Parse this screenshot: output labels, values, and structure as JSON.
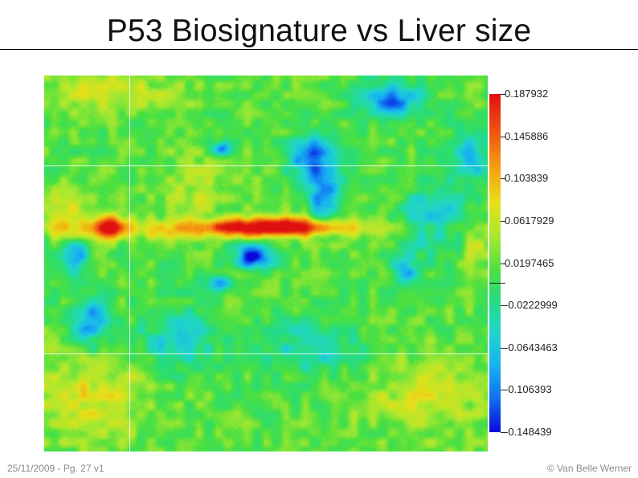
{
  "title": "P53 Biosignature vs Liver size",
  "footer": {
    "left": "25/11/2009 - Pg. 27 v1",
    "right": "© Van Belle Werner"
  },
  "chart_data": {
    "type": "heatmap",
    "title": "",
    "xlabel": "",
    "ylabel": "",
    "grid": true,
    "colorbar": {
      "position": "right",
      "min": -0.148439,
      "max": 0.187932,
      "tick_labels": [
        "0.187932",
        "0.145886",
        "0.103839",
        "0.0617929",
        "0.0197465",
        "-0.0222999",
        "-0.0643463",
        "-0.106393",
        "-0.148439"
      ],
      "colormap": "jet",
      "colors": [
        "#0808d8",
        "#1070f0",
        "#18b4f0",
        "#20d6c8",
        "#28dc78",
        "#4ce040",
        "#a8e830",
        "#e8e018",
        "#f5a012",
        "#f05a10",
        "#e01010"
      ]
    },
    "background_value": 0.02,
    "features": [
      {
        "kind": "high",
        "value": 0.18,
        "u": 0.53,
        "v": 0.4,
        "su": 0.09,
        "sv": 0.016
      },
      {
        "kind": "high",
        "value": 0.16,
        "u": 0.145,
        "v": 0.4,
        "su": 0.025,
        "sv": 0.022
      },
      {
        "kind": "band",
        "value": 0.1,
        "u": 0.4,
        "v": 0.405,
        "su": 0.3,
        "sv": 0.018
      },
      {
        "kind": "low",
        "value": -0.148,
        "u": 0.47,
        "v": 0.48,
        "su": 0.03,
        "sv": 0.022
      },
      {
        "kind": "low",
        "value": -0.12,
        "u": 0.395,
        "v": 0.55,
        "su": 0.02,
        "sv": 0.015
      },
      {
        "kind": "low",
        "value": -0.11,
        "u": 0.6,
        "v": 0.22,
        "su": 0.035,
        "sv": 0.045
      },
      {
        "kind": "low",
        "value": -0.1,
        "u": 0.63,
        "v": 0.32,
        "su": 0.025,
        "sv": 0.05
      },
      {
        "kind": "low",
        "value": -0.11,
        "u": 0.78,
        "v": 0.06,
        "su": 0.05,
        "sv": 0.035
      },
      {
        "kind": "low",
        "value": -0.09,
        "u": 0.1,
        "v": 0.65,
        "su": 0.03,
        "sv": 0.05
      },
      {
        "kind": "low",
        "value": -0.09,
        "u": 0.07,
        "v": 0.48,
        "su": 0.02,
        "sv": 0.03
      },
      {
        "kind": "low",
        "value": -0.1,
        "u": 0.4,
        "v": 0.19,
        "su": 0.015,
        "sv": 0.015
      },
      {
        "kind": "low",
        "value": -0.08,
        "u": 0.81,
        "v": 0.52,
        "su": 0.02,
        "sv": 0.03
      },
      {
        "kind": "low",
        "value": -0.06,
        "u": 0.88,
        "v": 0.38,
        "su": 0.05,
        "sv": 0.07
      },
      {
        "kind": "low",
        "value": -0.07,
        "u": 0.96,
        "v": 0.22,
        "su": 0.03,
        "sv": 0.05
      },
      {
        "kind": "low",
        "value": -0.06,
        "u": 0.3,
        "v": 0.7,
        "su": 0.06,
        "sv": 0.06
      },
      {
        "kind": "low",
        "value": -0.05,
        "u": 0.6,
        "v": 0.72,
        "su": 0.08,
        "sv": 0.05
      },
      {
        "kind": "high",
        "value": 0.08,
        "u": 0.1,
        "v": 0.85,
        "su": 0.1,
        "sv": 0.08
      },
      {
        "kind": "high",
        "value": 0.07,
        "u": 0.85,
        "v": 0.85,
        "su": 0.1,
        "sv": 0.08
      },
      {
        "kind": "high",
        "value": 0.07,
        "u": 0.15,
        "v": 0.04,
        "su": 0.12,
        "sv": 0.04
      },
      {
        "kind": "high",
        "value": 0.06,
        "u": 0.35,
        "v": 0.3,
        "su": 0.06,
        "sv": 0.06
      },
      {
        "kind": "high",
        "value": 0.07,
        "u": 0.05,
        "v": 0.36,
        "su": 0.03,
        "sv": 0.04
      },
      {
        "kind": "high",
        "value": 0.06,
        "u": 0.97,
        "v": 0.46,
        "su": 0.03,
        "sv": 0.04
      }
    ]
  }
}
